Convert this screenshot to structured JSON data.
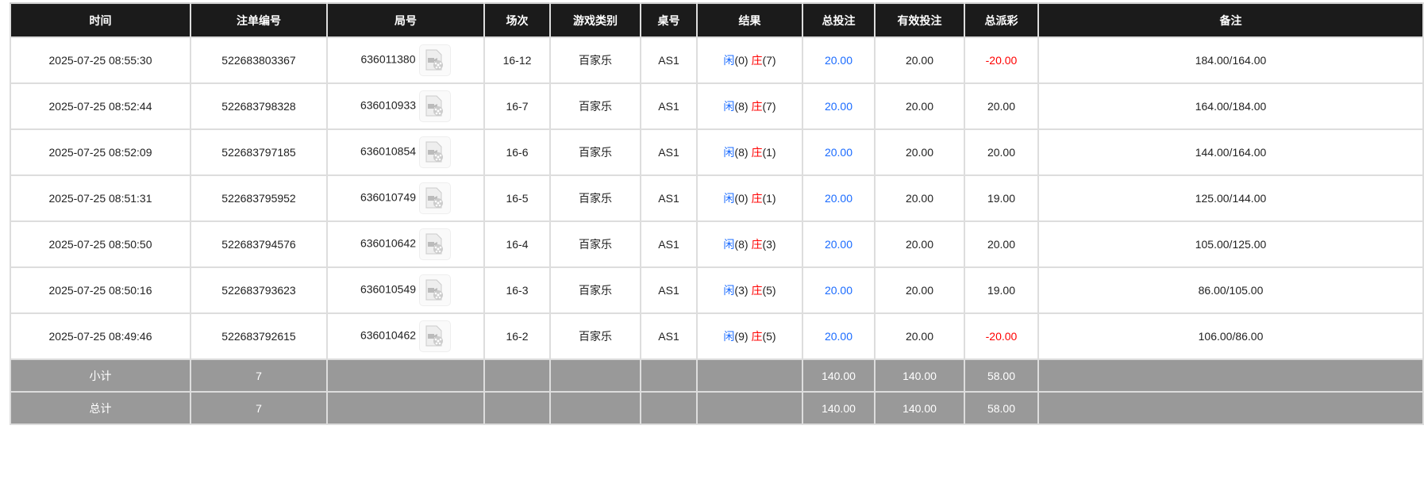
{
  "headers": [
    "时间",
    "注单编号",
    "局号",
    "场次",
    "游戏类别",
    "桌号",
    "结果",
    "总投注",
    "有效投注",
    "总派彩",
    "备注"
  ],
  "result_labels": {
    "player": "闲",
    "banker": "庄"
  },
  "rows": [
    {
      "time": "2025-07-25 08:55:30",
      "bet_id": "522683803367",
      "round": "636011380",
      "session": "16-12",
      "game": "百家乐",
      "table": "AS1",
      "player": "(0)",
      "banker": "(7)",
      "total_bet": "20.00",
      "valid_bet": "20.00",
      "payout": "-20.00",
      "payout_neg": true,
      "note": "184.00/164.00"
    },
    {
      "time": "2025-07-25 08:52:44",
      "bet_id": "522683798328",
      "round": "636010933",
      "session": "16-7",
      "game": "百家乐",
      "table": "AS1",
      "player": "(8)",
      "banker": "(7)",
      "total_bet": "20.00",
      "valid_bet": "20.00",
      "payout": "20.00",
      "payout_neg": false,
      "note": "164.00/184.00"
    },
    {
      "time": "2025-07-25 08:52:09",
      "bet_id": "522683797185",
      "round": "636010854",
      "session": "16-6",
      "game": "百家乐",
      "table": "AS1",
      "player": "(8)",
      "banker": "(1)",
      "total_bet": "20.00",
      "valid_bet": "20.00",
      "payout": "20.00",
      "payout_neg": false,
      "note": "144.00/164.00"
    },
    {
      "time": "2025-07-25 08:51:31",
      "bet_id": "522683795952",
      "round": "636010749",
      "session": "16-5",
      "game": "百家乐",
      "table": "AS1",
      "player": "(0)",
      "banker": "(1)",
      "total_bet": "20.00",
      "valid_bet": "20.00",
      "payout": "19.00",
      "payout_neg": false,
      "note": "125.00/144.00"
    },
    {
      "time": "2025-07-25 08:50:50",
      "bet_id": "522683794576",
      "round": "636010642",
      "session": "16-4",
      "game": "百家乐",
      "table": "AS1",
      "player": "(8)",
      "banker": "(3)",
      "total_bet": "20.00",
      "valid_bet": "20.00",
      "payout": "20.00",
      "payout_neg": false,
      "note": "105.00/125.00"
    },
    {
      "time": "2025-07-25 08:50:16",
      "bet_id": "522683793623",
      "round": "636010549",
      "session": "16-3",
      "game": "百家乐",
      "table": "AS1",
      "player": "(3)",
      "banker": "(5)",
      "total_bet": "20.00",
      "valid_bet": "20.00",
      "payout": "19.00",
      "payout_neg": false,
      "note": "86.00/105.00"
    },
    {
      "time": "2025-07-25 08:49:46",
      "bet_id": "522683792615",
      "round": "636010462",
      "session": "16-2",
      "game": "百家乐",
      "table": "AS1",
      "player": "(9)",
      "banker": "(5)",
      "total_bet": "20.00",
      "valid_bet": "20.00",
      "payout": "-20.00",
      "payout_neg": true,
      "note": "106.00/86.00"
    }
  ],
  "subtotal": {
    "label": "小计",
    "count": "7",
    "total_bet": "140.00",
    "valid_bet": "140.00",
    "payout": "58.00"
  },
  "total": {
    "label": "总计",
    "count": "7",
    "total_bet": "140.00",
    "valid_bet": "140.00",
    "payout": "58.00"
  },
  "colors": {
    "header_bg": "#1b1b1b",
    "player": "#1a6bff",
    "banker": "#ff0000",
    "summary_bg": "#999999"
  }
}
